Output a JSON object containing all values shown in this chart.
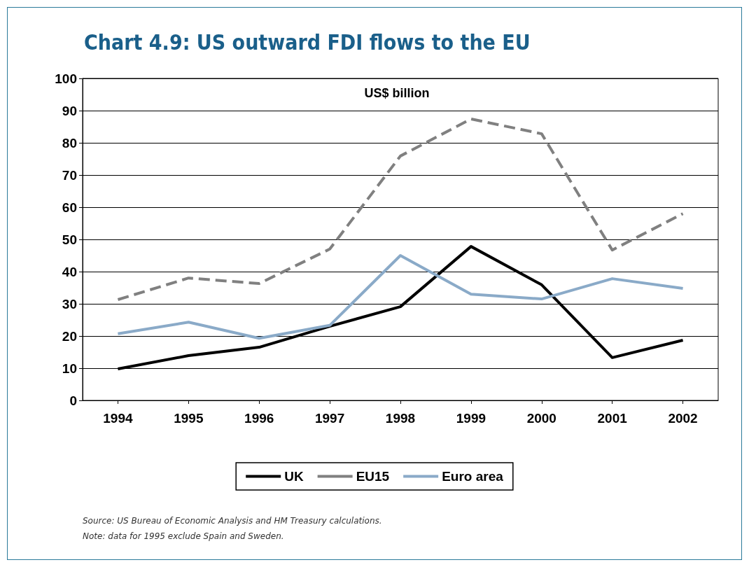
{
  "chart_data": {
    "type": "line",
    "title": "Chart 4.9: US outward FDI flows to the EU",
    "ylabel": "US$ billion",
    "categories": [
      "1994",
      "1995",
      "1996",
      "1997",
      "1998",
      "1999",
      "2000",
      "2001",
      "2002"
    ],
    "series": [
      {
        "name": "UK",
        "color": "#000000",
        "line_style": "solid",
        "values": [
          9.8,
          13.9,
          16.5,
          23,
          29.1,
          47.8,
          35.9,
          13.3,
          18.7
        ]
      },
      {
        "name": "EU15",
        "color": "#808080",
        "line_style": "dashed",
        "values": [
          31.3,
          38,
          36.3,
          47,
          75.9,
          87.4,
          82.8,
          46.7,
          58
        ]
      },
      {
        "name": "Euro area",
        "color": "#8aaac8",
        "line_style": "solid",
        "values": [
          20.7,
          24.3,
          19.3,
          23.3,
          45,
          33,
          31.5,
          37.8,
          34.8
        ]
      }
    ],
    "ylim": [
      0,
      100
    ],
    "yticks": [
      0,
      10,
      20,
      30,
      40,
      50,
      60,
      70,
      80,
      90,
      100
    ],
    "grid": "y",
    "legend": "bottom",
    "marker": "none",
    "annotations": [
      "Source: US Bureau of Economic Analysis and HM Treasury calculations.",
      "Note: data for 1995 exclude Spain and Sweden."
    ]
  }
}
